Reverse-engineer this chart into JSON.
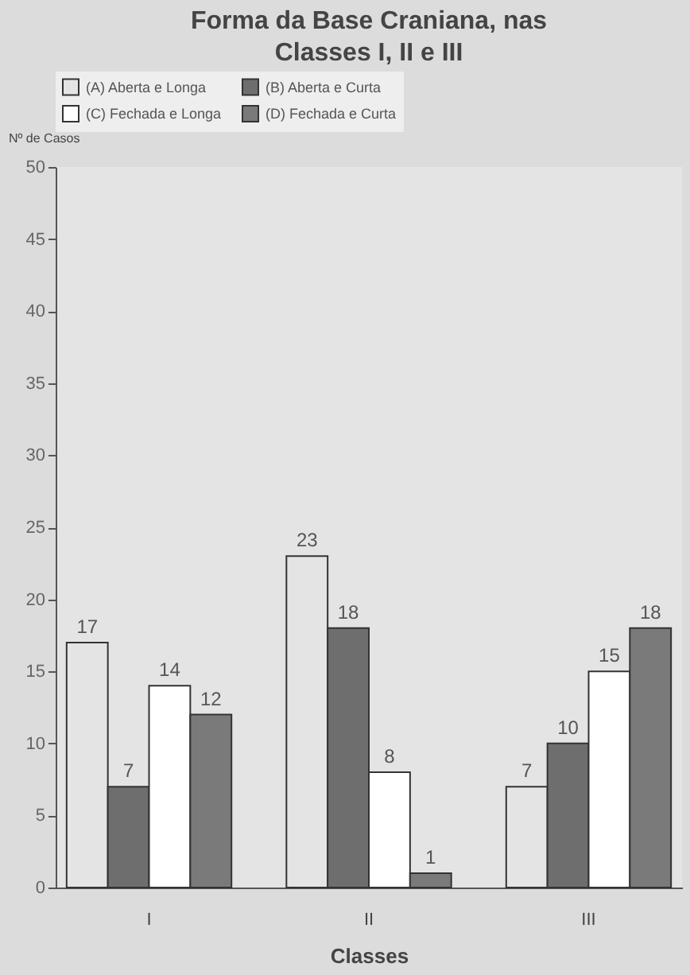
{
  "chart_data": {
    "type": "bar",
    "title": "Forma da Base Craniana, nas Classes I, II e III",
    "xlabel": "Classes",
    "ylabel": "Nº de Casos",
    "categories": [
      "I",
      "II",
      "III"
    ],
    "series": [
      {
        "name": "(A) Aberta e Longa",
        "color": "#e4e4e4",
        "values": [
          17,
          23,
          7
        ]
      },
      {
        "name": "(B) Aberta e Curta",
        "color": "#6e6e6e",
        "values": [
          7,
          18,
          10
        ]
      },
      {
        "name": "(C) Fechada e Longa",
        "color": "#ffffff",
        "values": [
          14,
          8,
          15
        ]
      },
      {
        "name": "(D) Fechada e Curta",
        "color": "#7a7a7a",
        "values": [
          12,
          1,
          18
        ]
      }
    ],
    "ylim": [
      0,
      50
    ],
    "yticks": [
      0,
      5,
      10,
      15,
      20,
      25,
      30,
      35,
      40,
      45,
      50
    ],
    "data_labels": true,
    "legend": "top",
    "grid": false
  }
}
